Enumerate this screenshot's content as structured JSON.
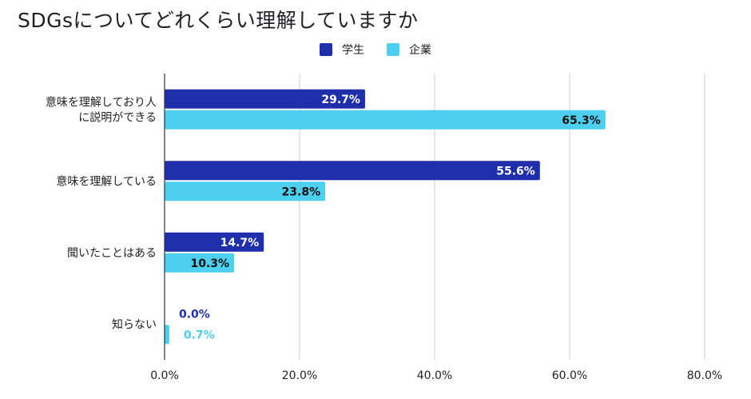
{
  "colors": {
    "student": "#1f2fac",
    "company": "#4dcfef",
    "grid": "#cccccc",
    "axis": "#333333",
    "text": "#222222"
  },
  "chart_data": {
    "type": "bar",
    "orientation": "horizontal",
    "title": "SDGsについてどれくらい理解していますか",
    "categories": [
      [
        "意味を理解しており人",
        "に説明ができる"
      ],
      [
        "意味を理解している"
      ],
      [
        "聞いたことはある"
      ],
      [
        "知らない"
      ]
    ],
    "series": [
      {
        "name": "学生",
        "values": [
          29.7,
          55.6,
          14.7,
          0.0
        ]
      },
      {
        "name": "企業",
        "values": [
          65.3,
          23.8,
          10.3,
          0.7
        ]
      }
    ],
    "value_labels": [
      [
        "29.7%",
        "55.6%",
        "14.7%",
        "0.0%"
      ],
      [
        "65.3%",
        "23.8%",
        "10.3%",
        "0.7%"
      ]
    ],
    "xlim": [
      0,
      80
    ],
    "xticks": [
      0,
      20,
      40,
      60,
      80
    ],
    "xtick_labels": [
      "0.0%",
      "20.0%",
      "40.0%",
      "60.0%",
      "80.0%"
    ],
    "grid": true,
    "legend_position": "top-center"
  }
}
